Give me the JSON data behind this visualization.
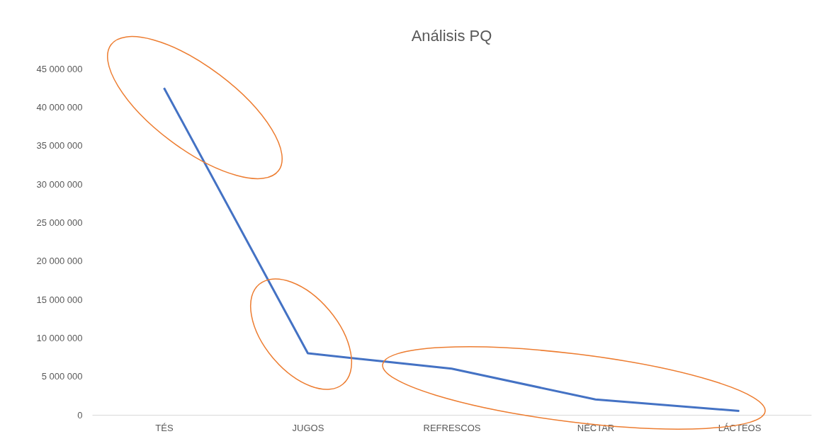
{
  "chart_data": {
    "type": "line",
    "title": "Análisis PQ",
    "categories": [
      "TÉS",
      "JUGOS",
      "REFRESCOS",
      "NÉCTAR",
      "LÁCTEOS"
    ],
    "series": [
      {
        "color": "#4472c4",
        "values": [
          42500000,
          8000000,
          6000000,
          2000000,
          500000
        ]
      }
    ],
    "ylim": [
      0,
      45000000
    ],
    "yticks": [
      {
        "value": 0,
        "label": "0"
      },
      {
        "value": 5000000,
        "label": "5 000 000"
      },
      {
        "value": 10000000,
        "label": "10 000 000"
      },
      {
        "value": 15000000,
        "label": "15 000 000"
      },
      {
        "value": 20000000,
        "label": "20 000 000"
      },
      {
        "value": 25000000,
        "label": "25 000 000"
      },
      {
        "value": 30000000,
        "label": "30 000 000"
      },
      {
        "value": 35000000,
        "label": "35 000 000"
      },
      {
        "value": 40000000,
        "label": "40 000 000"
      },
      {
        "value": 45000000,
        "label": "45 000 000"
      }
    ],
    "grid": false,
    "marker": "none",
    "line_style": "solid"
  }
}
